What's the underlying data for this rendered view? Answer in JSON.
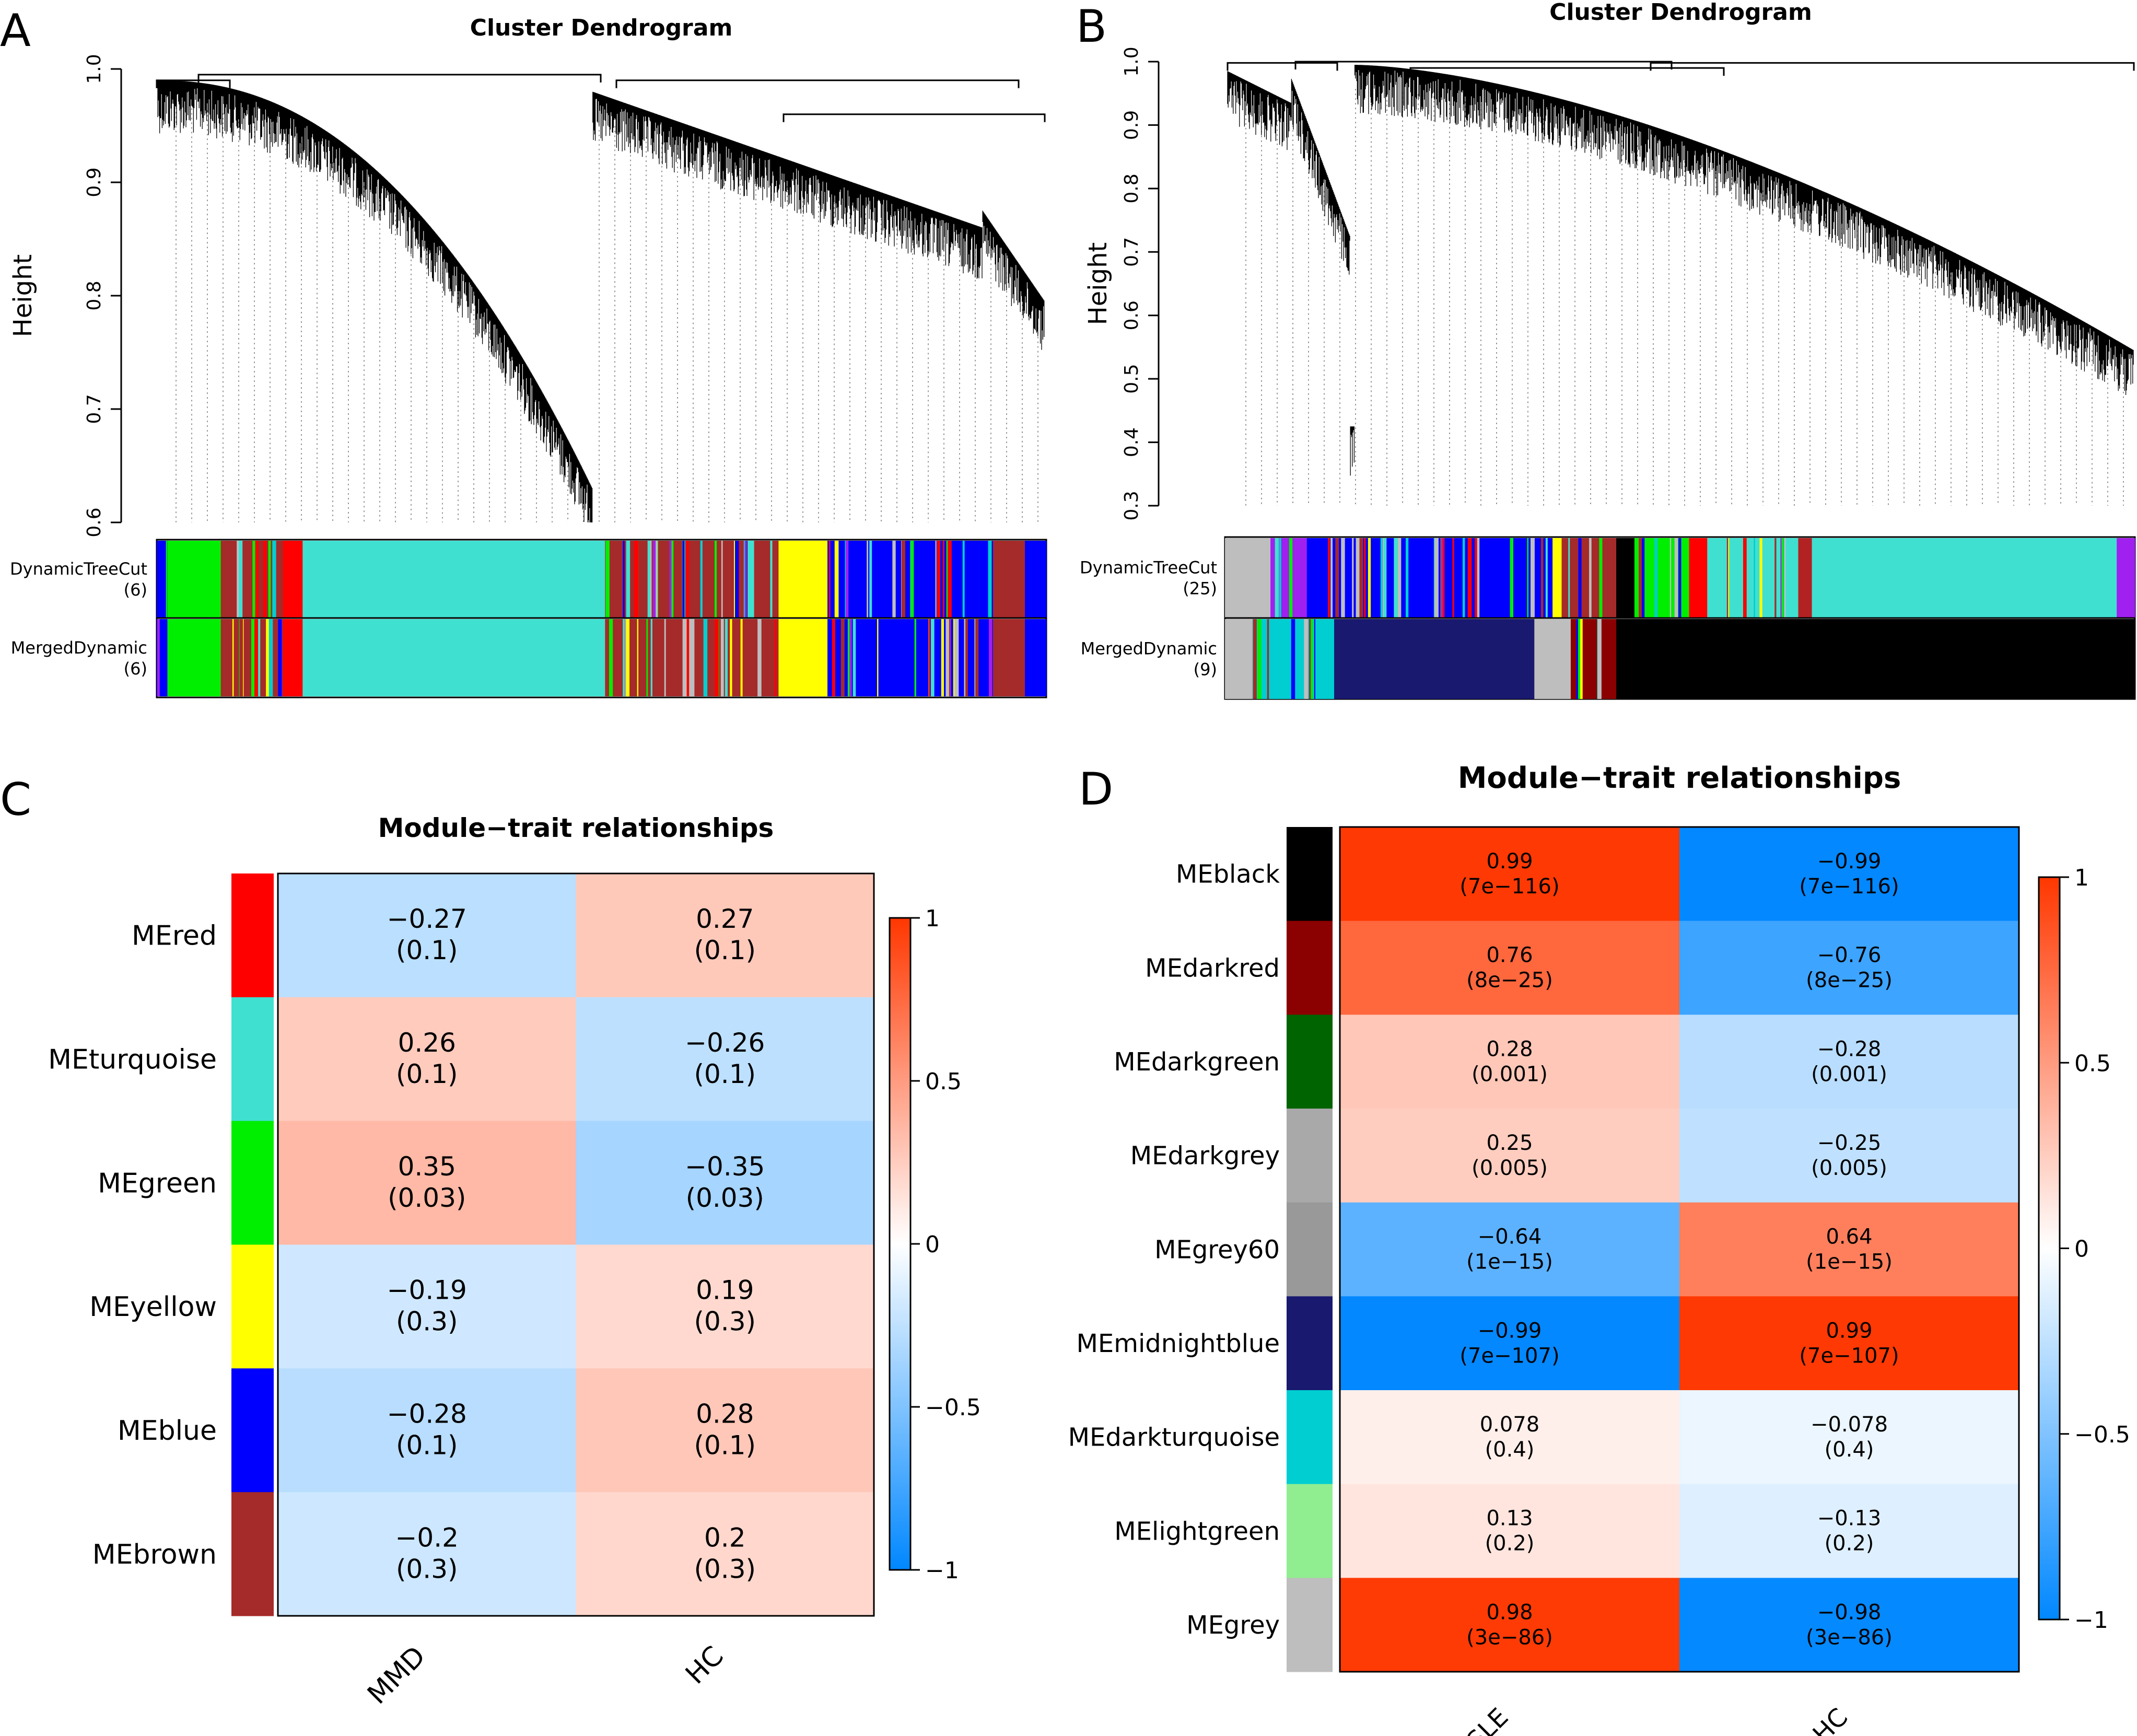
{
  "panel_letters": [
    "A",
    "B",
    "C",
    "D"
  ],
  "chart_data": [
    {
      "panel": "A",
      "type": "dendrogram",
      "title": "Cluster Dendrogram",
      "ylabel": "Height",
      "ylim": [
        0.6,
        1.0
      ],
      "yticks": [
        "0.6",
        "0.7",
        "0.8",
        "0.9",
        "1.0"
      ],
      "color_rows": [
        {
          "label": "DynamicTreeCut",
          "count": "(6)"
        },
        {
          "label": "MergedDynamic",
          "count": "(6)"
        }
      ],
      "module_bands": [
        {
          "color": "#0000FF",
          "share": 0.012,
          "mixed": true
        },
        {
          "color": "#00EE00",
          "share": 0.06
        },
        {
          "color": "#A52A2A",
          "share": 0.07,
          "mixed": true
        },
        {
          "color": "#FF0000",
          "share": 0.022
        },
        {
          "color": "#40E0D0",
          "share": 0.34
        },
        {
          "color": "#A52A2A",
          "share": 0.195,
          "mixed": true
        },
        {
          "color": "#FFFF00",
          "share": 0.055
        },
        {
          "color": "#0000FF",
          "share": 0.186,
          "mixed": true
        },
        {
          "color": "#A52A2A",
          "share": 0.036
        },
        {
          "color": "#0000FF",
          "share": 0.024
        }
      ]
    },
    {
      "panel": "B",
      "type": "dendrogram",
      "title": "Cluster Dendrogram",
      "ylabel": "Height",
      "ylim": [
        0.3,
        1.0
      ],
      "yticks": [
        "0.3",
        "0.4",
        "0.5",
        "0.6",
        "0.7",
        "0.8",
        "0.9",
        "1.0"
      ],
      "color_rows": [
        {
          "label": "DynamicTreeCut",
          "count": "(25)"
        },
        {
          "label": "MergedDynamic",
          "count": "(9)"
        }
      ],
      "top_bands": [
        {
          "color": "#BEBEBE",
          "share": 0.05
        },
        {
          "color": "#A020F0",
          "share": 0.04,
          "mixed": true
        },
        {
          "color": "#0000FF",
          "share": 0.27,
          "mixed": true
        },
        {
          "color": "#FFFF00",
          "share": 0.01
        },
        {
          "color": "#A52A2A",
          "share": 0.06,
          "mixed": true
        },
        {
          "color": "#000000",
          "share": 0.02
        },
        {
          "color": "#00EE00",
          "share": 0.06,
          "mixed": true
        },
        {
          "color": "#FF0000",
          "share": 0.02
        },
        {
          "color": "#40E0D0",
          "share": 0.1,
          "mixed": true
        },
        {
          "color": "#B22222",
          "share": 0.015
        },
        {
          "color": "#40E0D0",
          "share": 0.335
        },
        {
          "color": "#A020F0",
          "share": 0.02
        }
      ],
      "bottom_bands": [
        {
          "color": "#BEBEBE",
          "share": 0.03
        },
        {
          "color": "#00CED1",
          "share": 0.09,
          "mixed": true
        },
        {
          "color": "#191970",
          "share": 0.22
        },
        {
          "color": "#BEBEBE",
          "share": 0.04
        },
        {
          "color": "#8B0000",
          "share": 0.05,
          "mixed": true
        },
        {
          "color": "#000000",
          "share": 0.57
        }
      ]
    },
    {
      "panel": "C",
      "type": "heatmap",
      "title": "Module−trait relationships",
      "columns": [
        "MMD",
        "HC"
      ],
      "rows": [
        {
          "label": "MEred",
          "color": "#FF0000",
          "values": [
            -0.27,
            0.27
          ],
          "text": [
            "−0.27",
            "0.27"
          ],
          "p": [
            "(0.1)",
            "(0.1)"
          ]
        },
        {
          "label": "MEturquoise",
          "color": "#40E0D0",
          "values": [
            0.26,
            -0.26
          ],
          "text": [
            "0.26",
            "−0.26"
          ],
          "p": [
            "(0.1)",
            "(0.1)"
          ]
        },
        {
          "label": "MEgreen",
          "color": "#00EE00",
          "values": [
            0.35,
            -0.35
          ],
          "text": [
            "0.35",
            "−0.35"
          ],
          "p": [
            "(0.03)",
            "(0.03)"
          ]
        },
        {
          "label": "MEyellow",
          "color": "#FFFF00",
          "values": [
            -0.19,
            0.19
          ],
          "text": [
            "−0.19",
            "0.19"
          ],
          "p": [
            "(0.3)",
            "(0.3)"
          ]
        },
        {
          "label": "MEblue",
          "color": "#0000FF",
          "values": [
            -0.28,
            0.28
          ],
          "text": [
            "−0.28",
            "0.28"
          ],
          "p": [
            "(0.1)",
            "(0.1)"
          ]
        },
        {
          "label": "MEbrown",
          "color": "#A52A2A",
          "values": [
            -0.2,
            0.2
          ],
          "text": [
            "−0.2",
            "0.2"
          ],
          "p": [
            "(0.3)",
            "(0.3)"
          ]
        }
      ],
      "legend": {
        "range": [
          -1,
          1
        ],
        "ticks": [
          "1",
          "0.5",
          "0",
          "−0.5",
          "−1"
        ]
      }
    },
    {
      "panel": "D",
      "type": "heatmap",
      "title": "Module−trait relationships",
      "columns": [
        "SLE",
        "HC"
      ],
      "rows": [
        {
          "label": "MEblack",
          "color": "#000000",
          "values": [
            0.99,
            -0.99
          ],
          "text": [
            "0.99",
            "−0.99"
          ],
          "p": [
            "(7e−116)",
            "(7e−116)"
          ]
        },
        {
          "label": "MEdarkred",
          "color": "#8B0000",
          "values": [
            0.76,
            -0.76
          ],
          "text": [
            "0.76",
            "−0.76"
          ],
          "p": [
            "(8e−25)",
            "(8e−25)"
          ]
        },
        {
          "label": "MEdarkgreen",
          "color": "#006400",
          "values": [
            0.28,
            -0.28
          ],
          "text": [
            "0.28",
            "−0.28"
          ],
          "p": [
            "(0.001)",
            "(0.001)"
          ]
        },
        {
          "label": "MEdarkgrey",
          "color": "#A9A9A9",
          "values": [
            0.25,
            -0.25
          ],
          "text": [
            "0.25",
            "−0.25"
          ],
          "p": [
            "(0.005)",
            "(0.005)"
          ]
        },
        {
          "label": "MEgrey60",
          "color": "#999999",
          "values": [
            -0.64,
            0.64
          ],
          "text": [
            "−0.64",
            "0.64"
          ],
          "p": [
            "(1e−15)",
            "(1e−15)"
          ]
        },
        {
          "label": "MEmidnightblue",
          "color": "#191970",
          "values": [
            -0.99,
            0.99
          ],
          "text": [
            "−0.99",
            "0.99"
          ],
          "p": [
            "(7e−107)",
            "(7e−107)"
          ]
        },
        {
          "label": "MEdarkturquoise",
          "color": "#00CED1",
          "values": [
            0.078,
            -0.078
          ],
          "text": [
            "0.078",
            "−0.078"
          ],
          "p": [
            "(0.4)",
            "(0.4)"
          ]
        },
        {
          "label": "MElightgreen",
          "color": "#90EE90",
          "values": [
            0.13,
            -0.13
          ],
          "text": [
            "0.13",
            "−0.13"
          ],
          "p": [
            "(0.2)",
            "(0.2)"
          ]
        },
        {
          "label": "MEgrey",
          "color": "#BEBEBE",
          "values": [
            0.98,
            -0.98
          ],
          "text": [
            "0.98",
            "−0.98"
          ],
          "p": [
            "(3e−86)",
            "(3e−86)"
          ]
        }
      ],
      "legend": {
        "range": [
          -1,
          1
        ],
        "ticks": [
          "1",
          "0.5",
          "0",
          "−0.5",
          "−1"
        ]
      }
    }
  ]
}
